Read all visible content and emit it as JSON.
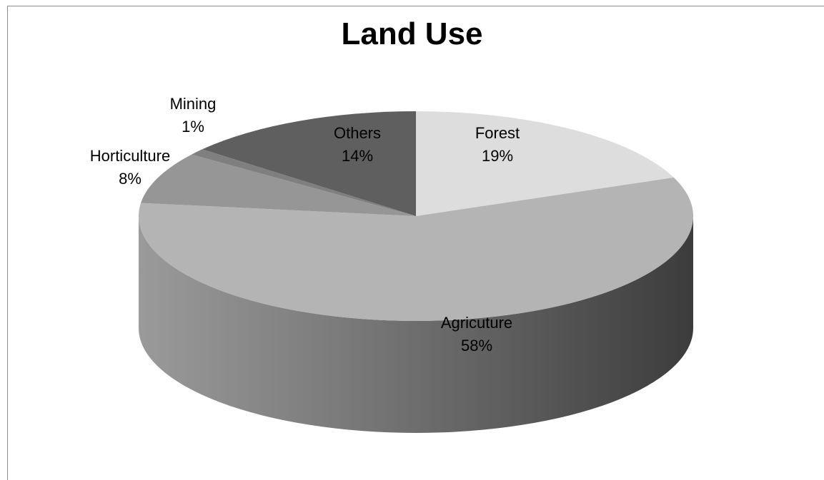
{
  "chart_data": {
    "type": "pie",
    "title": "Land Use",
    "style": "3d-exploded-none",
    "slices": [
      {
        "name": "Forest",
        "value": 19,
        "label": "19%",
        "color": "#dddddd"
      },
      {
        "name": "Agricuture",
        "value": 58,
        "label": "58%",
        "color": "#b4b4b4"
      },
      {
        "name": "Horticulture",
        "value": 8,
        "label": "8%",
        "color": "#969696"
      },
      {
        "name": "Mining",
        "value": 1,
        "label": "1%",
        "color": "#7f7f7f"
      },
      {
        "name": "Others",
        "value": 14,
        "label": "14%",
        "color": "#5f5f5f"
      }
    ],
    "legend": "none",
    "data_labels": "category and percentage"
  }
}
